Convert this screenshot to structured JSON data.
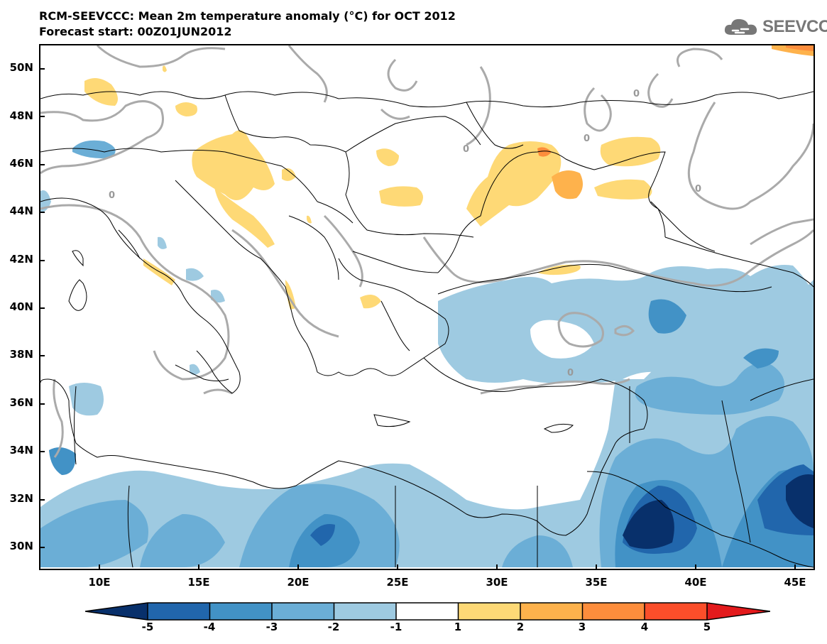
{
  "header": {
    "title": "RCM-SEEVCCC: Mean 2m temperature anomaly (°C) for OCT 2012",
    "subtitle": "Forecast start: 00Z01JUN2012",
    "logo_text": "SEEVCCC"
  },
  "map": {
    "lat_labels": [
      "50N",
      "48N",
      "46N",
      "44N",
      "42N",
      "40N",
      "38N",
      "36N",
      "34N",
      "32N",
      "30N"
    ],
    "lon_labels": [
      "10E",
      "15E",
      "20E",
      "25E",
      "30E",
      "35E",
      "40E",
      "45E"
    ],
    "contour_label": "0",
    "extent": {
      "lon_min": 7,
      "lon_max": 46,
      "lat_min": 29,
      "lat_max": 51
    }
  },
  "legend": {
    "levels": [
      "-5",
      "-4",
      "-3",
      "-2",
      "-1",
      "1",
      "2",
      "3",
      "4",
      "5"
    ],
    "colors": {
      "below_-5": "#08306b",
      "-5_-4": "#2166ac",
      "-4_-3": "#4292c6",
      "-3_-2": "#6baed6",
      "-2_-1": "#9ecae1",
      "-1_1": "#ffffff",
      "1_2": "#fed976",
      "2_3": "#feb24c",
      "3_4": "#fd8d3c",
      "4_5": "#fc4e2a",
      "above_5": "#e31a1c"
    }
  }
}
